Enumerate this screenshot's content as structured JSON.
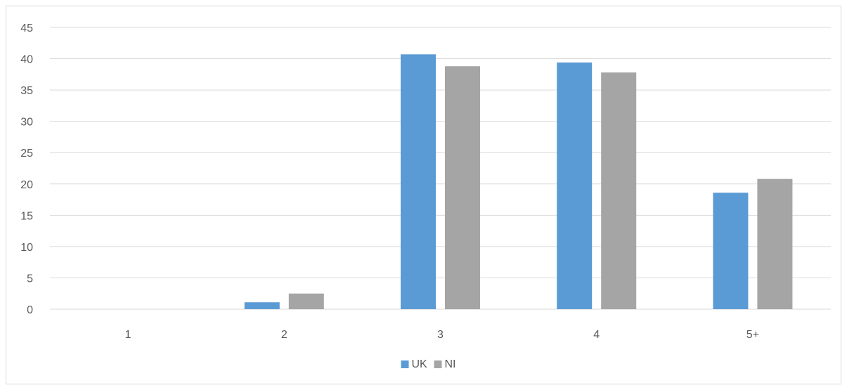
{
  "chart_data": {
    "type": "bar",
    "categories": [
      "1",
      "2",
      "3",
      "4",
      "5+"
    ],
    "series": [
      {
        "name": "UK",
        "color": "#5b9bd5",
        "values": [
          0,
          1.1,
          40.7,
          39.4,
          18.6
        ]
      },
      {
        "name": "NI",
        "color": "#a5a5a5",
        "values": [
          0,
          2.5,
          38.8,
          37.8,
          20.8
        ]
      }
    ],
    "y_ticks": [
      "0",
      "5",
      "10",
      "15",
      "20",
      "25",
      "30",
      "35",
      "40",
      "45"
    ],
    "ylim": [
      0,
      45
    ],
    "y_tick_step": 5,
    "grid": true,
    "legend_position": "bottom"
  }
}
